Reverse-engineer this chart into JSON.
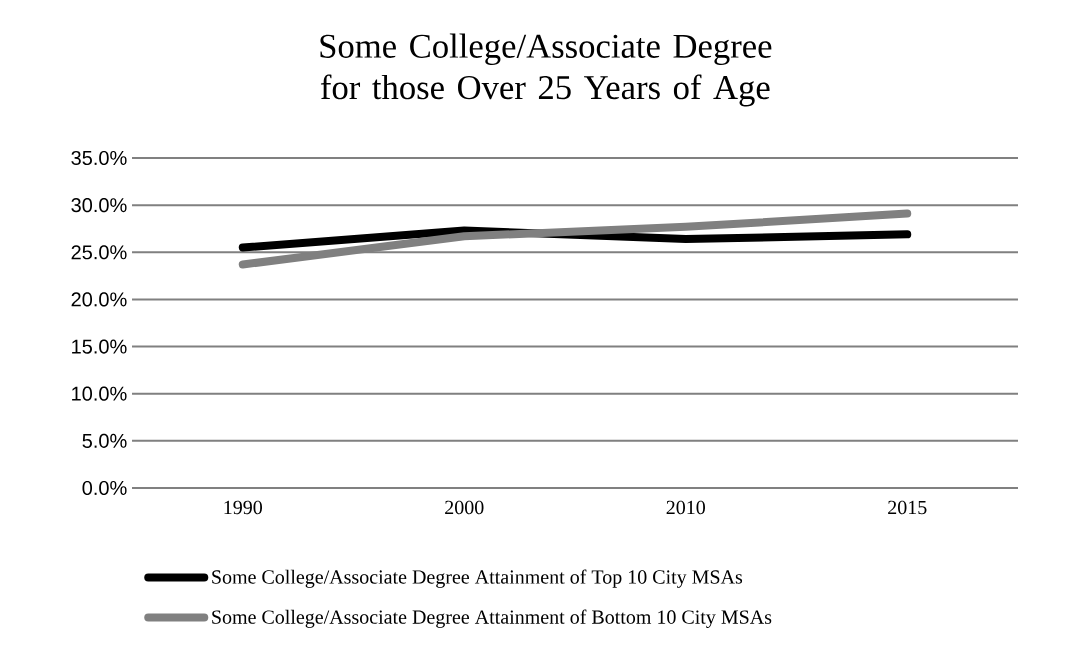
{
  "chart_data": {
    "type": "line",
    "title": "Some College/Associate Degree for those Over 25 Years of Age",
    "categories": [
      "1990",
      "2000",
      "2010",
      "2015"
    ],
    "series": [
      {
        "name": "Some College/Associate Degree Attainment of Top 10 City MSAs",
        "color": "#000000",
        "values": [
          25.5,
          27.3,
          26.4,
          26.9
        ]
      },
      {
        "name": "Some College/Associate Degree Attainment of Bottom 10 City MSAs",
        "color": "#808080",
        "values": [
          23.7,
          26.7,
          27.7,
          29.1
        ]
      }
    ],
    "ylim": [
      0,
      35
    ],
    "yticks": [
      {
        "value": 0,
        "label": "0.0%"
      },
      {
        "value": 5,
        "label": "5.0%"
      },
      {
        "value": 10,
        "label": "10.0%"
      },
      {
        "value": 15,
        "label": "15.0%"
      },
      {
        "value": 20,
        "label": "20.0%"
      },
      {
        "value": 25,
        "label": "25.0%"
      },
      {
        "value": 30,
        "label": "30.0%"
      },
      {
        "value": 35,
        "label": "35.0%"
      }
    ],
    "grid": "y",
    "legend": "bottom",
    "marker": "none",
    "line_style": "solid"
  }
}
